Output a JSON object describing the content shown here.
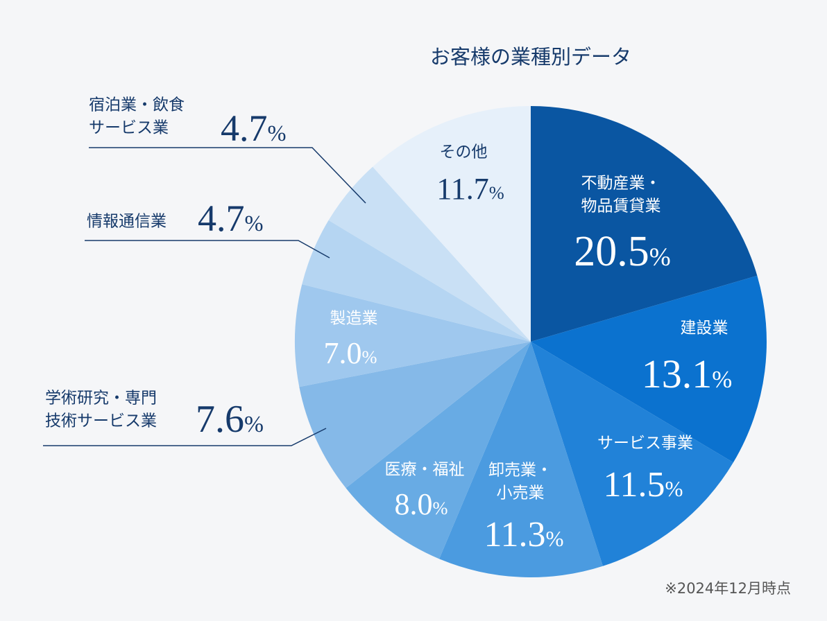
{
  "chart_data": {
    "type": "pie",
    "title": "お客様の業種別データ",
    "note": "※2024年12月時点",
    "categories": [
      "不動産業・\n物品賃貸業",
      "建設業",
      "サービス事業",
      "卸売業・\n小売業",
      "医療・福祉",
      "学術研究・専門\n技術サービス業",
      "製造業",
      "情報通信業",
      "宿泊業・飲食\nサービス業",
      "その他"
    ],
    "values": [
      20.5,
      13.1,
      11.5,
      11.3,
      8.0,
      7.6,
      7.0,
      4.7,
      4.7,
      11.7
    ],
    "value_labels": [
      "20.5%",
      "13.1%",
      "11.5%",
      "11.3%",
      "8.0%",
      "7.6%",
      "7.0%",
      "4.7%",
      "4.7%",
      "11.7%"
    ],
    "colors": [
      "#0a56a2",
      "#0b72cf",
      "#2182d8",
      "#4b9be0",
      "#68abe4",
      "#85b9e8",
      "#9fc8ee",
      "#b5d5f2",
      "#c9e0f5",
      "#e6f0fa"
    ]
  }
}
